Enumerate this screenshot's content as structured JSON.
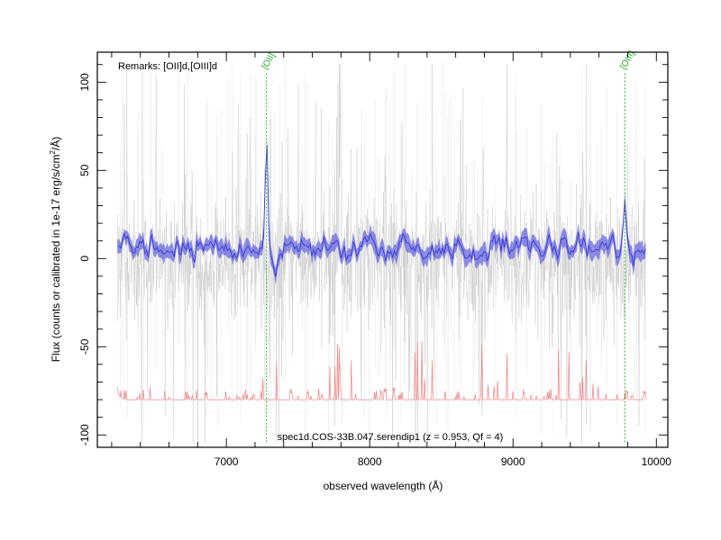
{
  "chart_data": {
    "type": "line",
    "xlabel": "observed wavelength (Å)",
    "ylabel_main": "Flux (counts or calibrated in 1e-17 erg/s/cm",
    "ylabel_sup": "2",
    "ylabel_tail": "/Å)",
    "remarks": "Remarks: [OII]d,[OIII]d",
    "footer": "spec1d.COS-33B.047.serendip1 (z = 0.953, Qf = 4)",
    "xlim": [
      6100,
      10080
    ],
    "ylim": [
      -107,
      117
    ],
    "x_ticks": [
      7000,
      8000,
      9000,
      10000
    ],
    "y_ticks": [
      -100,
      -50,
      0,
      50,
      100
    ],
    "x_tick_labels": [
      "7000",
      "8000",
      "9000",
      "10000"
    ],
    "y_tick_labels": [
      "-100",
      "-50",
      "0",
      "50",
      "100"
    ],
    "wavelength_range": [
      6240,
      9930
    ],
    "emission_lines": [
      {
        "label": "[OII]",
        "x": 7280,
        "peak": 74
      },
      {
        "label": "[OIII]",
        "x": 9780,
        "peak": 36
      }
    ],
    "series": [
      {
        "role": "individual exposures",
        "color": "#c8c8c8",
        "approx_range": [
          -100,
          100
        ]
      },
      {
        "role": "combined spectrum",
        "color": "#3a3ad8",
        "band_color": "#6a6ae0",
        "typical_level": 5
      },
      {
        "role": "noise / sky",
        "color": "#f08080",
        "baseline": -80,
        "max_spike": -45
      }
    ],
    "line_color": "#22aa22",
    "grid": false
  }
}
